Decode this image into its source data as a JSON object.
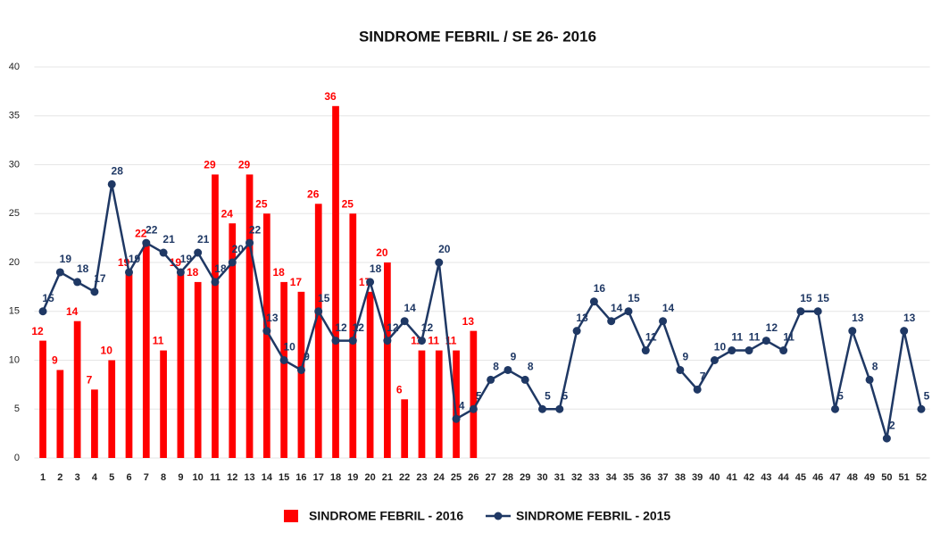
{
  "chart_data": {
    "type": "combo",
    "title": "SINDROME FEBRIL / SE 26- 2016",
    "categories": [
      "1",
      "2",
      "3",
      "4",
      "5",
      "6",
      "7",
      "8",
      "9",
      "10",
      "11",
      "12",
      "13",
      "14",
      "15",
      "16",
      "17",
      "18",
      "19",
      "20",
      "21",
      "22",
      "23",
      "24",
      "25",
      "26",
      "27",
      "28",
      "29",
      "30",
      "31",
      "32",
      "33",
      "34",
      "35",
      "36",
      "37",
      "38",
      "39",
      "40",
      "41",
      "42",
      "43",
      "44",
      "45",
      "46",
      "47",
      "48",
      "49",
      "50",
      "51",
      "52"
    ],
    "series": [
      {
        "name": "SINDROME FEBRIL - 2016",
        "type": "bar",
        "color": "#ff0000",
        "values": [
          12,
          9,
          14,
          7,
          10,
          19,
          22,
          11,
          19,
          18,
          29,
          24,
          29,
          25,
          18,
          17,
          26,
          36,
          25,
          17,
          20,
          6,
          11,
          11,
          11,
          13,
          null,
          null,
          null,
          null,
          null,
          null,
          null,
          null,
          null,
          null,
          null,
          null,
          null,
          null,
          null,
          null,
          null,
          null,
          null,
          null,
          null,
          null,
          null,
          null,
          null,
          null
        ]
      },
      {
        "name": "SINDROME FEBRIL - 2015",
        "type": "line",
        "color": "#1f3864",
        "values": [
          15,
          19,
          18,
          17,
          28,
          19,
          22,
          21,
          19,
          21,
          18,
          20,
          22,
          13,
          10,
          9,
          15,
          12,
          12,
          18,
          12,
          14,
          12,
          20,
          4,
          5,
          8,
          9,
          8,
          5,
          5,
          13,
          16,
          14,
          15,
          11,
          14,
          9,
          7,
          10,
          11,
          11,
          12,
          11,
          15,
          15,
          5,
          13,
          8,
          2,
          13,
          5
        ]
      }
    ],
    "ylim": [
      0,
      40
    ],
    "yticks": [
      0,
      5,
      10,
      15,
      20,
      25,
      30,
      35,
      40
    ],
    "grid": true
  }
}
